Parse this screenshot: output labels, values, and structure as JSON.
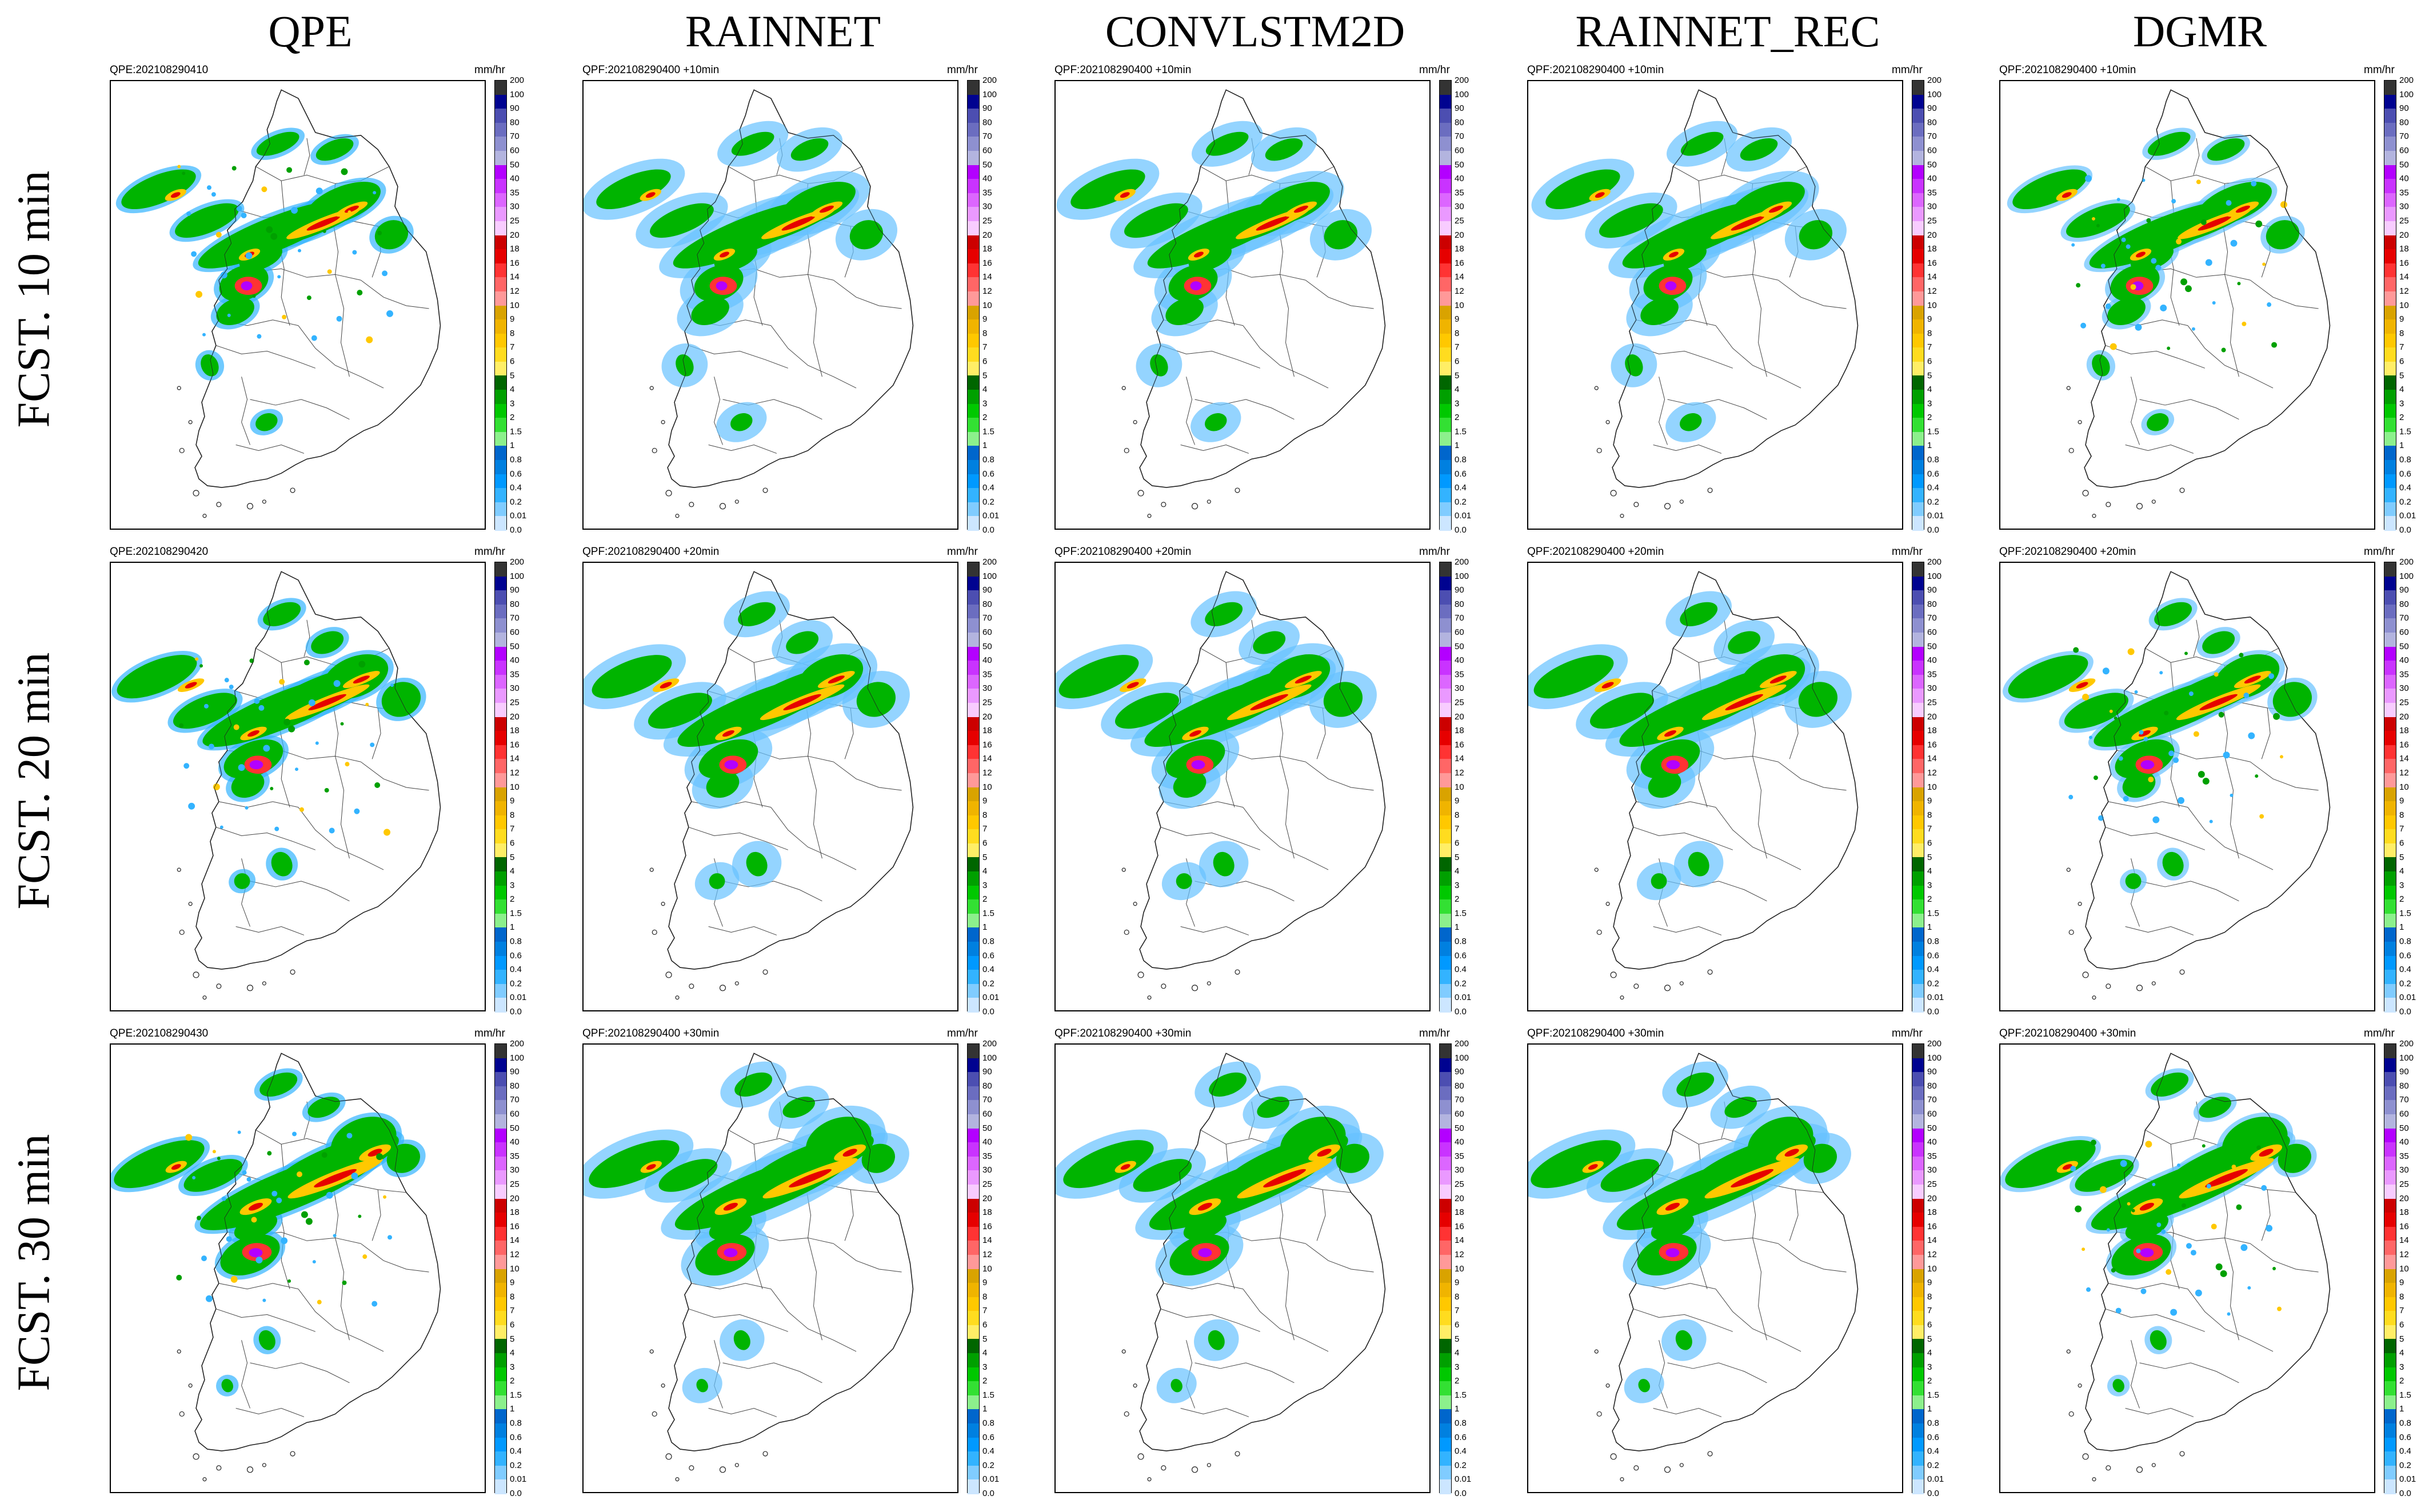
{
  "columns": [
    "QPE",
    "RAINNET",
    "CONVLSTM2D",
    "RAINNET_REC",
    "DGMR"
  ],
  "rows": [
    "FCST. 10 min",
    "FCST. 20 min",
    "FCST. 30 min"
  ],
  "unit": "mm/hr",
  "panel_titles": [
    [
      "QPE:202108290410",
      "QPF:202108290400 +10min",
      "QPF:202108290400 +10min",
      "QPF:202108290400 +10min",
      "QPF:202108290400 +10min"
    ],
    [
      "QPE:202108290420",
      "QPF:202108290400 +20min",
      "QPF:202108290400 +20min",
      "QPF:202108290400 +20min",
      "QPF:202108290400 +20min"
    ],
    [
      "QPE:202108290430",
      "QPF:202108290400 +30min",
      "QPF:202108290400 +30min",
      "QPF:202108290400 +30min",
      "QPF:202108290400 +30min"
    ]
  ],
  "colorbar": {
    "labels": [
      "200",
      "100",
      "90",
      "80",
      "70",
      "60",
      "50",
      "40",
      "35",
      "30",
      "25",
      "20",
      "18",
      "16",
      "14",
      "12",
      "10",
      "9",
      "8",
      "7",
      "6",
      "5",
      "4",
      "3",
      "2",
      "1.5",
      "1",
      "0.8",
      "0.6",
      "0.4",
      "0.2",
      "0.01",
      "0.0"
    ],
    "colors": [
      "#333333",
      "#000390",
      "#4c4eb1",
      "#6b6dc0",
      "#8e90d0",
      "#b3b4df",
      "#b300ff",
      "#c933ff",
      "#dc66ff",
      "#ea99ff",
      "#f8ccff",
      "#cc0000",
      "#e60000",
      "#ff3333",
      "#ff6666",
      "#ff9999",
      "#d9a300",
      "#f0b400",
      "#ffc800",
      "#ffdc1f",
      "#ffee66",
      "#006600",
      "#00a000",
      "#00c800",
      "#33e033",
      "#8cf08c",
      "#0066cc",
      "#0080e0",
      "#0099ff",
      "#33b3ff",
      "#80ccff",
      "#cce6ff"
    ]
  }
}
